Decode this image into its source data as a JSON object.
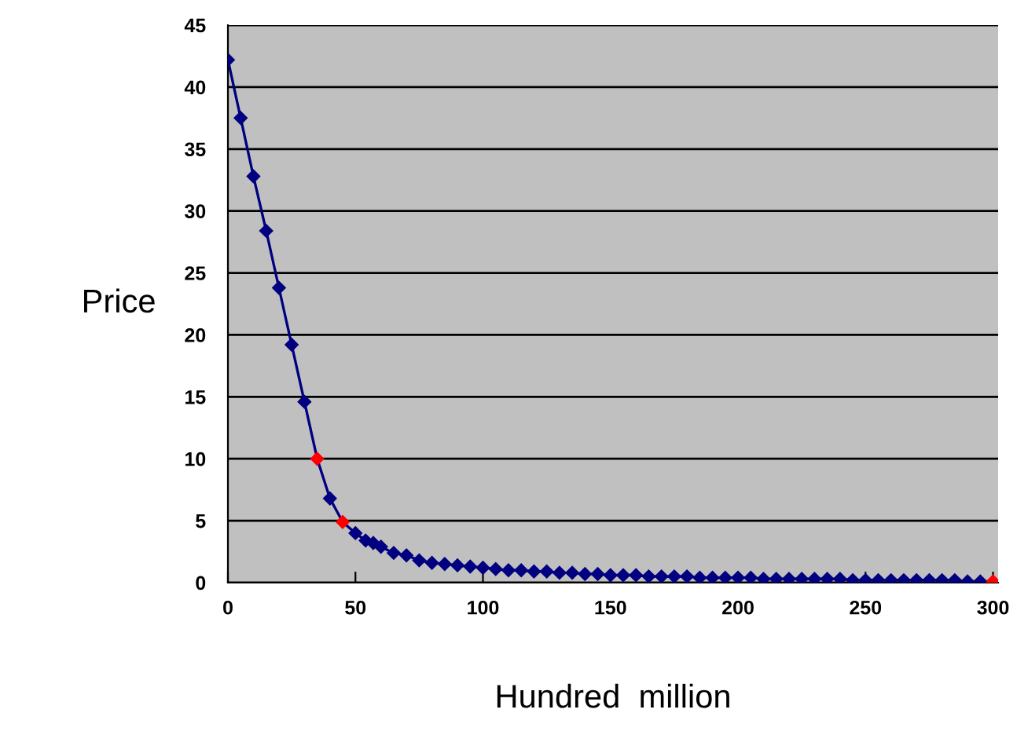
{
  "chart_data": {
    "type": "line",
    "xlabel": "Hundred  million",
    "ylabel": "Price",
    "xlim": [
      0,
      302
    ],
    "ylim": [
      0,
      45
    ],
    "xticks": [
      0,
      50,
      100,
      150,
      200,
      250,
      300
    ],
    "yticks": [
      0,
      5,
      10,
      15,
      20,
      25,
      30,
      35,
      40,
      45
    ],
    "grid": "y",
    "marker": "diamond",
    "line_style": "solid",
    "legend": false,
    "series": [
      {
        "color": "#000080",
        "x": [
          0,
          5,
          10,
          15,
          20,
          25,
          30,
          35,
          40,
          45,
          50,
          54,
          57,
          60,
          65,
          70,
          75,
          80,
          85,
          90,
          95,
          100,
          105,
          110,
          115,
          120,
          125,
          130,
          135,
          140,
          145,
          150,
          155,
          160,
          165,
          170,
          175,
          180,
          185,
          190,
          195,
          200,
          205,
          210,
          215,
          220,
          225,
          230,
          235,
          240,
          245,
          250,
          255,
          260,
          265,
          270,
          275,
          280,
          285,
          290,
          295,
          300
        ],
        "values": [
          42.2,
          37.5,
          32.8,
          28.4,
          23.8,
          19.2,
          14.6,
          10,
          6.8,
          4.9,
          4.0,
          3.4,
          3.2,
          2.9,
          2.4,
          2.2,
          1.8,
          1.6,
          1.5,
          1.4,
          1.3,
          1.2,
          1.1,
          1.0,
          1.0,
          0.9,
          0.9,
          0.8,
          0.8,
          0.7,
          0.7,
          0.6,
          0.6,
          0.6,
          0.5,
          0.5,
          0.5,
          0.5,
          0.4,
          0.4,
          0.4,
          0.4,
          0.4,
          0.3,
          0.3,
          0.3,
          0.3,
          0.3,
          0.3,
          0.3,
          0.2,
          0.2,
          0.2,
          0.2,
          0.2,
          0.2,
          0.2,
          0.2,
          0.2,
          0.1,
          0.1,
          0.1
        ],
        "colors": [
          "#000080",
          "#000080",
          "#000080",
          "#000080",
          "#000080",
          "#000080",
          "#000080",
          "#ff0000",
          "#000080",
          "#ff0000",
          "#000080",
          "#000080",
          "#000080",
          "#000080",
          "#000080",
          "#000080",
          "#000080",
          "#000080",
          "#000080",
          "#000080",
          "#000080",
          "#000080",
          "#000080",
          "#000080",
          "#000080",
          "#000080",
          "#000080",
          "#000080",
          "#000080",
          "#000080",
          "#000080",
          "#000080",
          "#000080",
          "#000080",
          "#000080",
          "#000080",
          "#000080",
          "#000080",
          "#000080",
          "#000080",
          "#000080",
          "#000080",
          "#000080",
          "#000080",
          "#000080",
          "#000080",
          "#000080",
          "#000080",
          "#000080",
          "#000080",
          "#000080",
          "#000080",
          "#000080",
          "#000080",
          "#000080",
          "#000080",
          "#000080",
          "#000080",
          "#000080",
          "#000080",
          "#000080",
          "#ff0000"
        ]
      }
    ]
  }
}
